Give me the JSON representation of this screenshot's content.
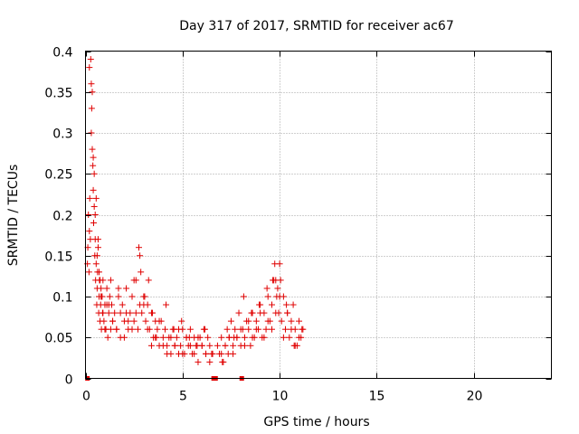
{
  "chart_data": {
    "type": "scatter",
    "title": "Day 317 of 2017, SRMTID for receiver ac67",
    "xlabel": "GPS time / hours",
    "ylabel": "SRMTID / TECUs",
    "xlim": [
      0,
      24
    ],
    "ylim": [
      0,
      0.4
    ],
    "xticks": [
      0,
      5,
      10,
      15,
      20
    ],
    "xtick_labels": [
      "0",
      "5",
      "10",
      "15",
      "20"
    ],
    "yticks": [
      0,
      0.05,
      0.1,
      0.15,
      0.2,
      0.25,
      0.3,
      0.35,
      0.4
    ],
    "ytick_labels": [
      "0",
      "0.05",
      "0.1",
      "0.15",
      "0.2",
      "0.25",
      "0.3",
      "0.35",
      "0.4"
    ],
    "grid": true,
    "marker": "+",
    "color": "#e00000",
    "gap_markers_x": [
      0.1,
      6.6,
      6.7,
      8.05
    ],
    "series": [
      {
        "name": "SRMTID",
        "x": [
          0.1,
          0.12,
          0.15,
          0.18,
          0.2,
          0.22,
          0.25,
          0.27,
          0.3,
          0.32,
          0.35,
          0.38,
          0.4,
          0.42,
          0.45,
          0.48,
          0.5,
          0.52,
          0.55,
          0.58,
          0.6,
          0.62,
          0.65,
          0.68,
          0.7,
          0.72,
          0.75,
          0.78,
          0.8,
          0.82,
          0.85,
          0.88,
          0.9,
          0.95,
          1.0,
          1.05,
          1.1,
          1.15,
          1.2,
          1.25,
          1.3,
          1.35,
          1.4,
          1.5,
          1.6,
          1.7,
          1.8,
          1.9,
          2.0,
          2.1,
          2.2,
          2.3,
          2.4,
          2.5,
          2.6,
          2.7,
          2.8,
          2.9,
          3.0,
          3.1,
          3.2,
          3.3,
          3.4,
          3.5,
          3.6,
          3.7,
          3.8,
          3.9,
          4.0,
          4.1,
          4.2,
          4.3,
          4.4,
          4.5,
          4.6,
          4.7,
          4.8,
          4.9,
          5.0,
          5.1,
          5.2,
          5.3,
          5.4,
          5.5,
          5.6,
          5.7,
          5.8,
          5.9,
          6.0,
          6.1,
          6.2,
          6.3,
          6.4,
          6.5,
          6.8,
          6.9,
          7.0,
          7.1,
          7.2,
          7.3,
          7.4,
          7.5,
          7.6,
          7.7,
          7.8,
          7.9,
          8.0,
          8.1,
          8.2,
          8.3,
          8.4,
          8.5,
          8.6,
          8.7,
          8.8,
          8.9,
          9.0,
          9.1,
          9.2,
          9.3,
          9.4,
          9.5,
          9.6,
          9.7,
          9.8,
          9.9,
          10.0,
          10.1,
          10.2,
          10.3,
          10.4,
          10.5,
          10.6,
          10.7,
          10.8,
          10.9,
          11.0,
          11.1,
          11.2,
          0.2,
          0.3,
          0.4,
          0.5,
          0.6,
          0.7,
          0.8,
          0.9,
          1.0,
          1.2,
          1.4,
          1.6,
          1.8,
          2.0,
          2.2,
          2.4,
          2.6,
          2.8,
          3.0,
          3.2,
          3.4,
          3.6,
          3.8,
          4.0,
          4.2,
          4.4,
          4.6,
          4.8,
          5.0,
          5.2,
          5.4,
          5.6,
          5.8,
          6.0,
          6.2,
          6.4,
          7.0,
          7.2,
          7.4,
          7.6,
          7.8,
          8.0,
          8.2,
          8.4,
          8.6,
          8.8,
          9.0,
          9.2,
          9.4,
          9.6,
          9.8,
          10.0,
          10.2,
          10.4,
          10.6,
          10.8,
          11.0,
          0.35,
          0.45,
          0.55,
          0.65,
          0.75,
          0.85,
          1.1,
          1.3,
          1.7,
          2.1,
          2.5,
          2.75,
          2.85,
          3.05,
          3.25,
          3.45,
          3.65,
          4.15,
          4.55,
          4.95,
          5.35,
          5.75,
          6.15,
          6.55,
          7.05,
          7.35,
          7.65,
          8.15,
          8.55,
          8.95,
          9.35,
          9.65,
          9.75,
          9.85,
          9.95,
          10.05,
          10.35,
          10.75,
          11.15
        ],
        "y": [
          0.14,
          0.16,
          0.2,
          0.13,
          0.18,
          0.22,
          0.17,
          0.39,
          0.36,
          0.33,
          0.28,
          0.26,
          0.23,
          0.19,
          0.21,
          0.15,
          0.17,
          0.12,
          0.14,
          0.09,
          0.11,
          0.13,
          0.16,
          0.08,
          0.1,
          0.12,
          0.07,
          0.09,
          0.11,
          0.06,
          0.1,
          0.08,
          0.12,
          0.07,
          0.09,
          0.06,
          0.11,
          0.05,
          0.08,
          0.1,
          0.06,
          0.09,
          0.07,
          0.08,
          0.06,
          0.1,
          0.05,
          0.09,
          0.07,
          0.11,
          0.06,
          0.08,
          0.1,
          0.07,
          0.12,
          0.06,
          0.09,
          0.08,
          0.1,
          0.07,
          0.09,
          0.06,
          0.08,
          0.05,
          0.07,
          0.06,
          0.04,
          0.07,
          0.05,
          0.06,
          0.04,
          0.05,
          0.03,
          0.06,
          0.04,
          0.05,
          0.03,
          0.04,
          0.06,
          0.03,
          0.05,
          0.04,
          0.06,
          0.03,
          0.05,
          0.04,
          0.02,
          0.05,
          0.04,
          0.06,
          0.03,
          0.05,
          0.04,
          0.03,
          0.04,
          0.03,
          0.05,
          0.02,
          0.04,
          0.06,
          0.05,
          0.07,
          0.04,
          0.06,
          0.05,
          0.08,
          0.04,
          0.06,
          0.05,
          0.07,
          0.06,
          0.04,
          0.08,
          0.05,
          0.07,
          0.06,
          0.09,
          0.05,
          0.08,
          0.06,
          0.1,
          0.07,
          0.09,
          0.12,
          0.08,
          0.11,
          0.14,
          0.07,
          0.1,
          0.06,
          0.08,
          0.05,
          0.07,
          0.09,
          0.06,
          0.04,
          0.07,
          0.05,
          0.06,
          0.38,
          0.3,
          0.27,
          0.2,
          0.15,
          0.13,
          0.1,
          0.08,
          0.06,
          0.09,
          0.07,
          0.06,
          0.08,
          0.05,
          0.07,
          0.06,
          0.08,
          0.15,
          0.09,
          0.06,
          0.04,
          0.05,
          0.07,
          0.04,
          0.03,
          0.05,
          0.04,
          0.06,
          0.03,
          0.05,
          0.04,
          0.03,
          0.05,
          0.04,
          0.03,
          0.02,
          0.03,
          0.04,
          0.05,
          0.03,
          0.05,
          0.06,
          0.04,
          0.07,
          0.05,
          0.06,
          0.08,
          0.05,
          0.07,
          0.06,
          0.12,
          0.1,
          0.05,
          0.08,
          0.06,
          0.04,
          0.05,
          0.35,
          0.25,
          0.22,
          0.17,
          0.12,
          0.1,
          0.09,
          0.12,
          0.11,
          0.08,
          0.12,
          0.16,
          0.13,
          0.1,
          0.12,
          0.08,
          0.05,
          0.09,
          0.06,
          0.07,
          0.05,
          0.04,
          0.06,
          0.03,
          0.02,
          0.03,
          0.05,
          0.1,
          0.08,
          0.09,
          0.11,
          0.12,
          0.14,
          0.1,
          0.08,
          0.12,
          0.09,
          0.04,
          0.06
        ]
      }
    ]
  }
}
